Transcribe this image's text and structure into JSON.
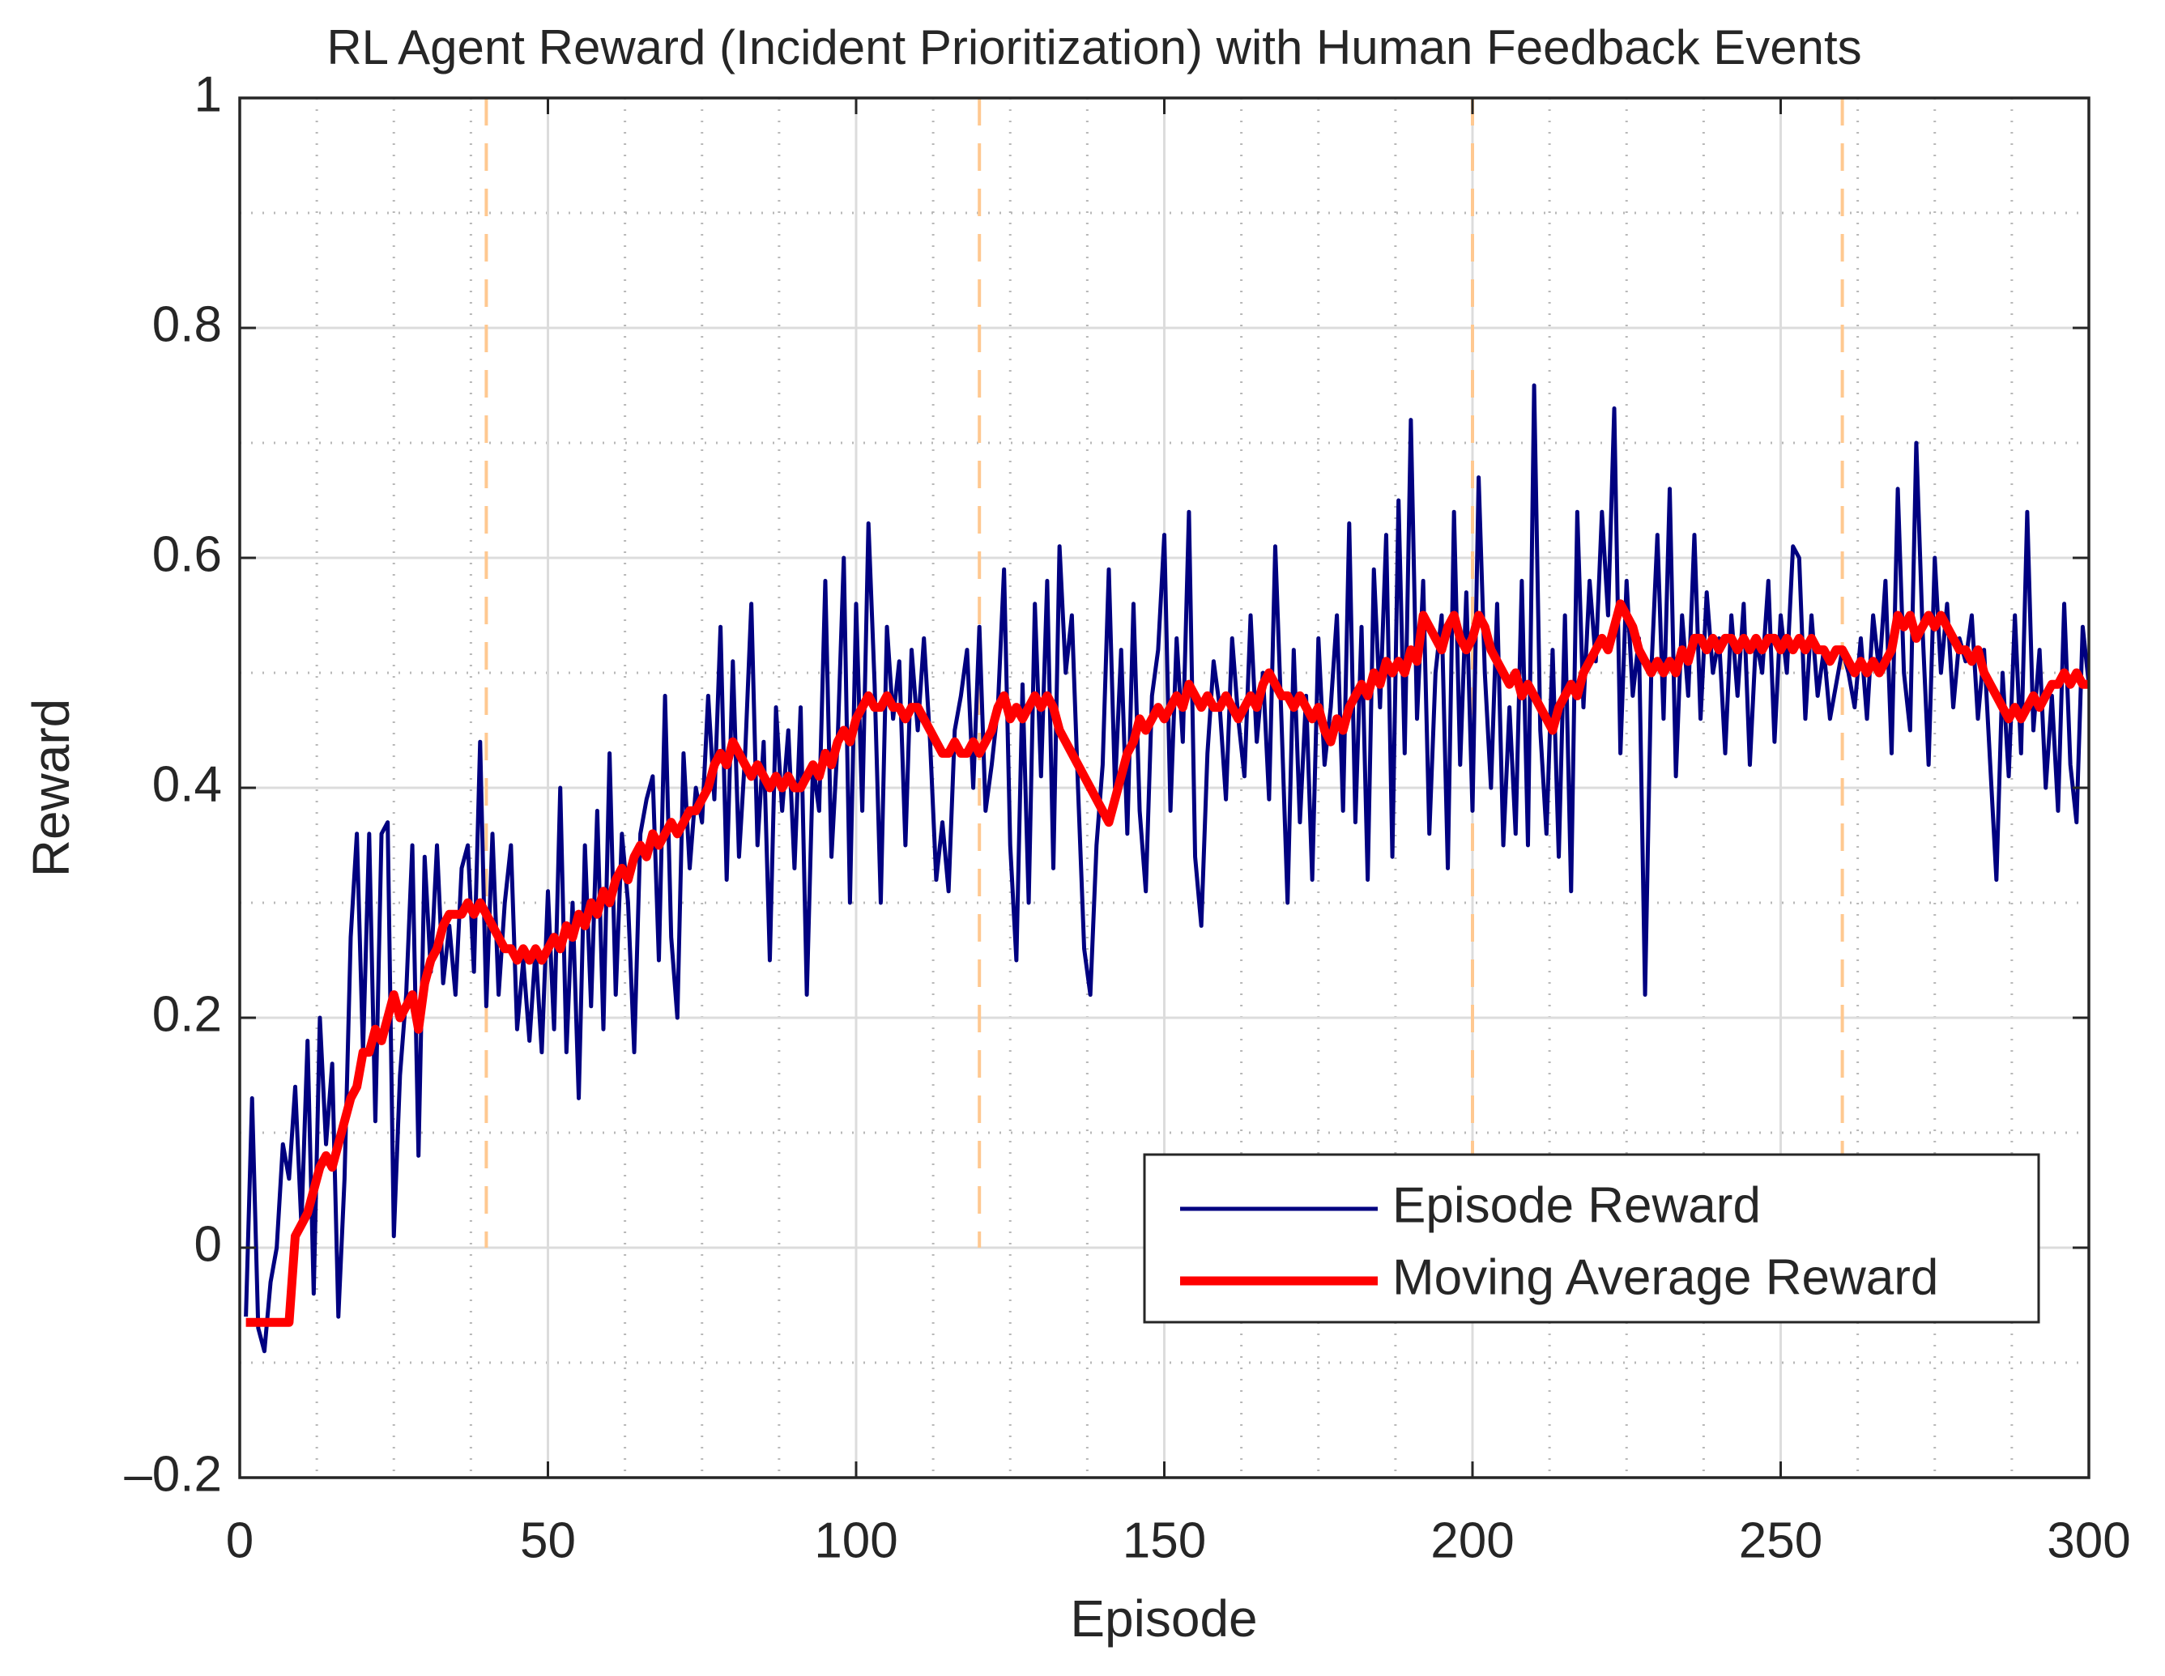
{
  "chart_data": {
    "type": "line",
    "title": "RL Agent Reward (Incident Prioritization) with Human Feedback Events",
    "x_label": "Episode",
    "y_label": "Reward",
    "xlim": [
      0,
      300
    ],
    "ylim": [
      -0.2,
      1
    ],
    "xticks": [
      0,
      50,
      100,
      150,
      200,
      250,
      300
    ],
    "yticks": [
      {
        "value": -0.2,
        "label": "–0.2"
      },
      0,
      0.2,
      0.4,
      0.6,
      0.8,
      1
    ],
    "xminorticks": [
      12.5,
      25,
      37.5,
      62.5,
      75,
      87.5,
      112.5,
      125,
      137.5,
      162.5,
      175,
      187.5,
      212.5,
      225,
      237.5,
      262.5,
      275,
      287.5
    ],
    "yminorticks": [
      -0.1,
      0.1,
      0.3,
      0.5,
      0.7,
      0.9
    ],
    "grid": true,
    "minor_grid": true,
    "legend": "lower right",
    "feedback_events": [
      40,
      120,
      200,
      260
    ],
    "feedback_color": "#ffc890",
    "feedback_span": [
      0,
      1
    ],
    "x": [
      1,
      2,
      3,
      4,
      5,
      6,
      7,
      8,
      9,
      10,
      11,
      12,
      13,
      14,
      15,
      16,
      17,
      18,
      19,
      20,
      21,
      22,
      23,
      24,
      25,
      26,
      27,
      28,
      29,
      30,
      31,
      32,
      33,
      34,
      35,
      36,
      37,
      38,
      39,
      40,
      41,
      42,
      43,
      44,
      45,
      46,
      47,
      48,
      49,
      50,
      51,
      52,
      53,
      54,
      55,
      56,
      57,
      58,
      59,
      60,
      61,
      62,
      63,
      64,
      65,
      66,
      67,
      68,
      69,
      70,
      71,
      72,
      73,
      74,
      75,
      76,
      77,
      78,
      79,
      80,
      81,
      82,
      83,
      84,
      85,
      86,
      87,
      88,
      89,
      90,
      91,
      92,
      93,
      94,
      95,
      96,
      97,
      98,
      99,
      100,
      101,
      102,
      103,
      104,
      105,
      106,
      107,
      108,
      109,
      110,
      111,
      112,
      113,
      114,
      115,
      116,
      117,
      118,
      119,
      120,
      121,
      122,
      123,
      124,
      125,
      126,
      127,
      128,
      129,
      130,
      131,
      132,
      133,
      134,
      135,
      136,
      137,
      138,
      139,
      140,
      141,
      142,
      143,
      144,
      145,
      146,
      147,
      148,
      149,
      150,
      151,
      152,
      153,
      154,
      155,
      156,
      157,
      158,
      159,
      160,
      161,
      162,
      163,
      164,
      165,
      166,
      167,
      168,
      169,
      170,
      171,
      172,
      173,
      174,
      175,
      176,
      177,
      178,
      179,
      180,
      181,
      182,
      183,
      184,
      185,
      186,
      187,
      188,
      189,
      190,
      191,
      192,
      193,
      194,
      195,
      196,
      197,
      198,
      199,
      200,
      201,
      202,
      203,
      204,
      205,
      206,
      207,
      208,
      209,
      210,
      211,
      212,
      213,
      214,
      215,
      216,
      217,
      218,
      219,
      220,
      221,
      222,
      223,
      224,
      225,
      226,
      227,
      228,
      229,
      230,
      231,
      232,
      233,
      234,
      235,
      236,
      237,
      238,
      239,
      240,
      241,
      242,
      243,
      244,
      245,
      246,
      247,
      248,
      249,
      250,
      251,
      252,
      253,
      254,
      255,
      256,
      257,
      258,
      259,
      260,
      261,
      262,
      263,
      264,
      265,
      266,
      267,
      268,
      269,
      270,
      271,
      272,
      273,
      274,
      275,
      276,
      277,
      278,
      279,
      280,
      281,
      282,
      283,
      284,
      285,
      286,
      287,
      288,
      289,
      290,
      291,
      292,
      293,
      294,
      295,
      296,
      297,
      298,
      299,
      300
    ],
    "series": [
      {
        "name": "Episode Reward",
        "color": "#000080",
        "width": 5,
        "values": [
          -0.06,
          0.13,
          -0.07,
          -0.09,
          -0.03,
          0.0,
          0.09,
          0.06,
          0.14,
          0.02,
          0.18,
          -0.04,
          0.2,
          0.09,
          0.16,
          -0.06,
          0.06,
          0.27,
          0.36,
          0.17,
          0.36,
          0.11,
          0.36,
          0.37,
          0.01,
          0.15,
          0.22,
          0.35,
          0.08,
          0.34,
          0.24,
          0.35,
          0.23,
          0.28,
          0.22,
          0.33,
          0.35,
          0.24,
          0.44,
          0.21,
          0.36,
          0.22,
          0.3,
          0.35,
          0.19,
          0.25,
          0.18,
          0.26,
          0.17,
          0.31,
          0.19,
          0.4,
          0.17,
          0.3,
          0.13,
          0.35,
          0.21,
          0.38,
          0.19,
          0.43,
          0.22,
          0.36,
          0.3,
          0.17,
          0.36,
          0.39,
          0.41,
          0.25,
          0.48,
          0.27,
          0.2,
          0.43,
          0.33,
          0.4,
          0.37,
          0.48,
          0.39,
          0.54,
          0.32,
          0.51,
          0.34,
          0.43,
          0.56,
          0.35,
          0.44,
          0.25,
          0.47,
          0.38,
          0.45,
          0.33,
          0.47,
          0.22,
          0.42,
          0.38,
          0.58,
          0.34,
          0.44,
          0.6,
          0.3,
          0.56,
          0.38,
          0.63,
          0.49,
          0.3,
          0.54,
          0.46,
          0.51,
          0.35,
          0.52,
          0.45,
          0.53,
          0.44,
          0.32,
          0.37,
          0.31,
          0.45,
          0.48,
          0.52,
          0.4,
          0.54,
          0.38,
          0.42,
          0.47,
          0.59,
          0.35,
          0.25,
          0.49,
          0.3,
          0.56,
          0.41,
          0.58,
          0.33,
          0.61,
          0.5,
          0.55,
          0.4,
          0.26,
          0.22,
          0.35,
          0.42,
          0.59,
          0.4,
          0.52,
          0.36,
          0.56,
          0.38,
          0.31,
          0.48,
          0.52,
          0.62,
          0.38,
          0.53,
          0.44,
          0.64,
          0.34,
          0.28,
          0.43,
          0.51,
          0.47,
          0.39,
          0.53,
          0.46,
          0.41,
          0.55,
          0.44,
          0.5,
          0.39,
          0.61,
          0.46,
          0.3,
          0.52,
          0.37,
          0.48,
          0.32,
          0.53,
          0.42,
          0.47,
          0.55,
          0.38,
          0.63,
          0.37,
          0.54,
          0.32,
          0.59,
          0.47,
          0.62,
          0.34,
          0.65,
          0.43,
          0.72,
          0.46,
          0.58,
          0.36,
          0.5,
          0.55,
          0.33,
          0.64,
          0.42,
          0.57,
          0.38,
          0.67,
          0.5,
          0.4,
          0.56,
          0.35,
          0.47,
          0.36,
          0.58,
          0.35,
          0.75,
          0.45,
          0.36,
          0.52,
          0.34,
          0.55,
          0.31,
          0.64,
          0.47,
          0.58,
          0.51,
          0.64,
          0.55,
          0.73,
          0.43,
          0.58,
          0.48,
          0.53,
          0.22,
          0.5,
          0.62,
          0.46,
          0.66,
          0.41,
          0.55,
          0.48,
          0.62,
          0.46,
          0.57,
          0.5,
          0.53,
          0.43,
          0.55,
          0.48,
          0.56,
          0.42,
          0.53,
          0.5,
          0.58,
          0.44,
          0.55,
          0.5,
          0.61,
          0.6,
          0.46,
          0.55,
          0.48,
          0.52,
          0.46,
          0.49,
          0.52,
          0.5,
          0.47,
          0.53,
          0.46,
          0.55,
          0.5,
          0.58,
          0.43,
          0.66,
          0.5,
          0.45,
          0.7,
          0.54,
          0.42,
          0.6,
          0.5,
          0.56,
          0.47,
          0.53,
          0.51,
          0.55,
          0.46,
          0.52,
          0.42,
          0.32,
          0.5,
          0.41,
          0.55,
          0.43,
          0.64,
          0.45,
          0.52,
          0.4,
          0.48,
          0.38,
          0.56,
          0.42,
          0.37,
          0.54,
          0.49
        ]
      },
      {
        "name": "Moving Average Reward",
        "color": "#ff0000",
        "width": 11,
        "values": [
          -0.065,
          -0.065,
          -0.065,
          -0.065,
          -0.065,
          -0.065,
          -0.065,
          -0.065,
          0.01,
          0.02,
          0.03,
          0.05,
          0.07,
          0.08,
          0.07,
          0.09,
          0.11,
          0.13,
          0.14,
          0.17,
          0.17,
          0.19,
          0.18,
          0.2,
          0.22,
          0.2,
          0.21,
          0.22,
          0.19,
          0.23,
          0.25,
          0.26,
          0.28,
          0.29,
          0.29,
          0.29,
          0.3,
          0.29,
          0.3,
          0.29,
          0.28,
          0.27,
          0.26,
          0.26,
          0.25,
          0.26,
          0.25,
          0.26,
          0.25,
          0.26,
          0.27,
          0.26,
          0.28,
          0.27,
          0.29,
          0.28,
          0.3,
          0.29,
          0.31,
          0.3,
          0.32,
          0.33,
          0.32,
          0.34,
          0.35,
          0.34,
          0.36,
          0.35,
          0.36,
          0.37,
          0.36,
          0.37,
          0.38,
          0.38,
          0.39,
          0.4,
          0.42,
          0.43,
          0.42,
          0.44,
          0.43,
          0.42,
          0.41,
          0.42,
          0.41,
          0.4,
          0.41,
          0.4,
          0.41,
          0.4,
          0.4,
          0.41,
          0.42,
          0.41,
          0.43,
          0.42,
          0.44,
          0.45,
          0.44,
          0.46,
          0.47,
          0.48,
          0.47,
          0.47,
          0.48,
          0.47,
          0.47,
          0.46,
          0.47,
          0.47,
          0.46,
          0.45,
          0.44,
          0.43,
          0.43,
          0.44,
          0.43,
          0.43,
          0.44,
          0.43,
          0.44,
          0.45,
          0.47,
          0.48,
          0.46,
          0.47,
          0.46,
          0.47,
          0.48,
          0.47,
          0.48,
          0.47,
          0.45,
          0.44,
          0.43,
          0.42,
          0.41,
          0.4,
          0.39,
          0.38,
          0.37,
          0.39,
          0.41,
          0.43,
          0.44,
          0.46,
          0.45,
          0.46,
          0.47,
          0.46,
          0.47,
          0.48,
          0.47,
          0.49,
          0.48,
          0.47,
          0.48,
          0.47,
          0.47,
          0.48,
          0.47,
          0.46,
          0.47,
          0.48,
          0.47,
          0.49,
          0.5,
          0.49,
          0.48,
          0.48,
          0.47,
          0.48,
          0.47,
          0.46,
          0.47,
          0.45,
          0.44,
          0.46,
          0.45,
          0.47,
          0.48,
          0.49,
          0.48,
          0.5,
          0.49,
          0.51,
          0.5,
          0.51,
          0.5,
          0.52,
          0.51,
          0.55,
          0.54,
          0.53,
          0.52,
          0.54,
          0.55,
          0.53,
          0.52,
          0.53,
          0.55,
          0.54,
          0.52,
          0.51,
          0.5,
          0.49,
          0.5,
          0.48,
          0.49,
          0.48,
          0.47,
          0.46,
          0.45,
          0.47,
          0.48,
          0.49,
          0.48,
          0.5,
          0.51,
          0.52,
          0.53,
          0.52,
          0.54,
          0.56,
          0.55,
          0.54,
          0.52,
          0.51,
          0.5,
          0.51,
          0.5,
          0.51,
          0.5,
          0.52,
          0.51,
          0.53,
          0.53,
          0.52,
          0.53,
          0.52,
          0.53,
          0.53,
          0.52,
          0.53,
          0.52,
          0.53,
          0.52,
          0.53,
          0.53,
          0.52,
          0.53,
          0.52,
          0.53,
          0.52,
          0.53,
          0.52,
          0.52,
          0.51,
          0.52,
          0.52,
          0.51,
          0.5,
          0.51,
          0.5,
          0.51,
          0.5,
          0.51,
          0.52,
          0.55,
          0.54,
          0.55,
          0.53,
          0.54,
          0.55,
          0.54,
          0.55,
          0.54,
          0.53,
          0.52,
          0.52,
          0.51,
          0.52,
          0.5,
          0.49,
          0.48,
          0.47,
          0.46,
          0.47,
          0.46,
          0.47,
          0.48,
          0.47,
          0.48,
          0.49,
          0.49,
          0.5,
          0.49,
          0.5,
          0.49,
          0.49
        ]
      }
    ]
  }
}
